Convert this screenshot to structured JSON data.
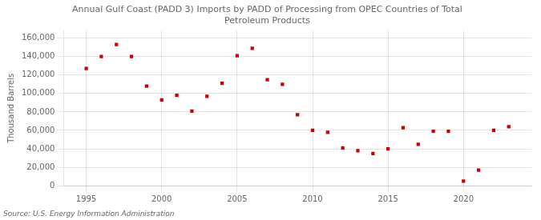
{
  "chart_data": {
    "type": "scatter",
    "title": "Annual Gulf Coast (PADD 3) Imports by PADD of Processing from OPEC Countries of Total\nPetroleum Products",
    "ylabel": "Thousand Barrels",
    "source": "Source: U.S. Energy Information Administration",
    "x": [
      1995,
      1996,
      1997,
      1998,
      1999,
      2000,
      2001,
      2002,
      2003,
      2004,
      2005,
      2006,
      2007,
      2008,
      2009,
      2010,
      2011,
      2012,
      2013,
      2014,
      2015,
      2016,
      2017,
      2018,
      2019,
      2020,
      2021,
      2022,
      2023
    ],
    "values": [
      127000,
      140000,
      153000,
      140000,
      108000,
      93000,
      98000,
      81000,
      97000,
      111000,
      141000,
      149000,
      115000,
      110000,
      77000,
      60000,
      58000,
      41000,
      38000,
      35000,
      40000,
      63000,
      45000,
      59000,
      59000,
      5000,
      17000,
      60000,
      64000
    ],
    "color": "#cc0000",
    "marker": "square",
    "xlim": [
      1993.5,
      2024.5
    ],
    "xticks": [
      1995,
      2000,
      2005,
      2010,
      2015,
      2020
    ],
    "ylim": [
      0,
      168000
    ],
    "yticks": [
      0,
      {
        "value": 20000,
        "label": "20,000"
      },
      {
        "value": 40000,
        "label": "40,000"
      },
      {
        "value": 60000,
        "label": "60,000"
      },
      {
        "value": 80000,
        "label": "80,000"
      },
      {
        "value": 100000,
        "label": "100,000"
      },
      {
        "value": 120000,
        "label": "120,000"
      },
      {
        "value": 140000,
        "label": "140,000"
      },
      {
        "value": 160000,
        "label": "160,000"
      }
    ],
    "grid": true
  }
}
